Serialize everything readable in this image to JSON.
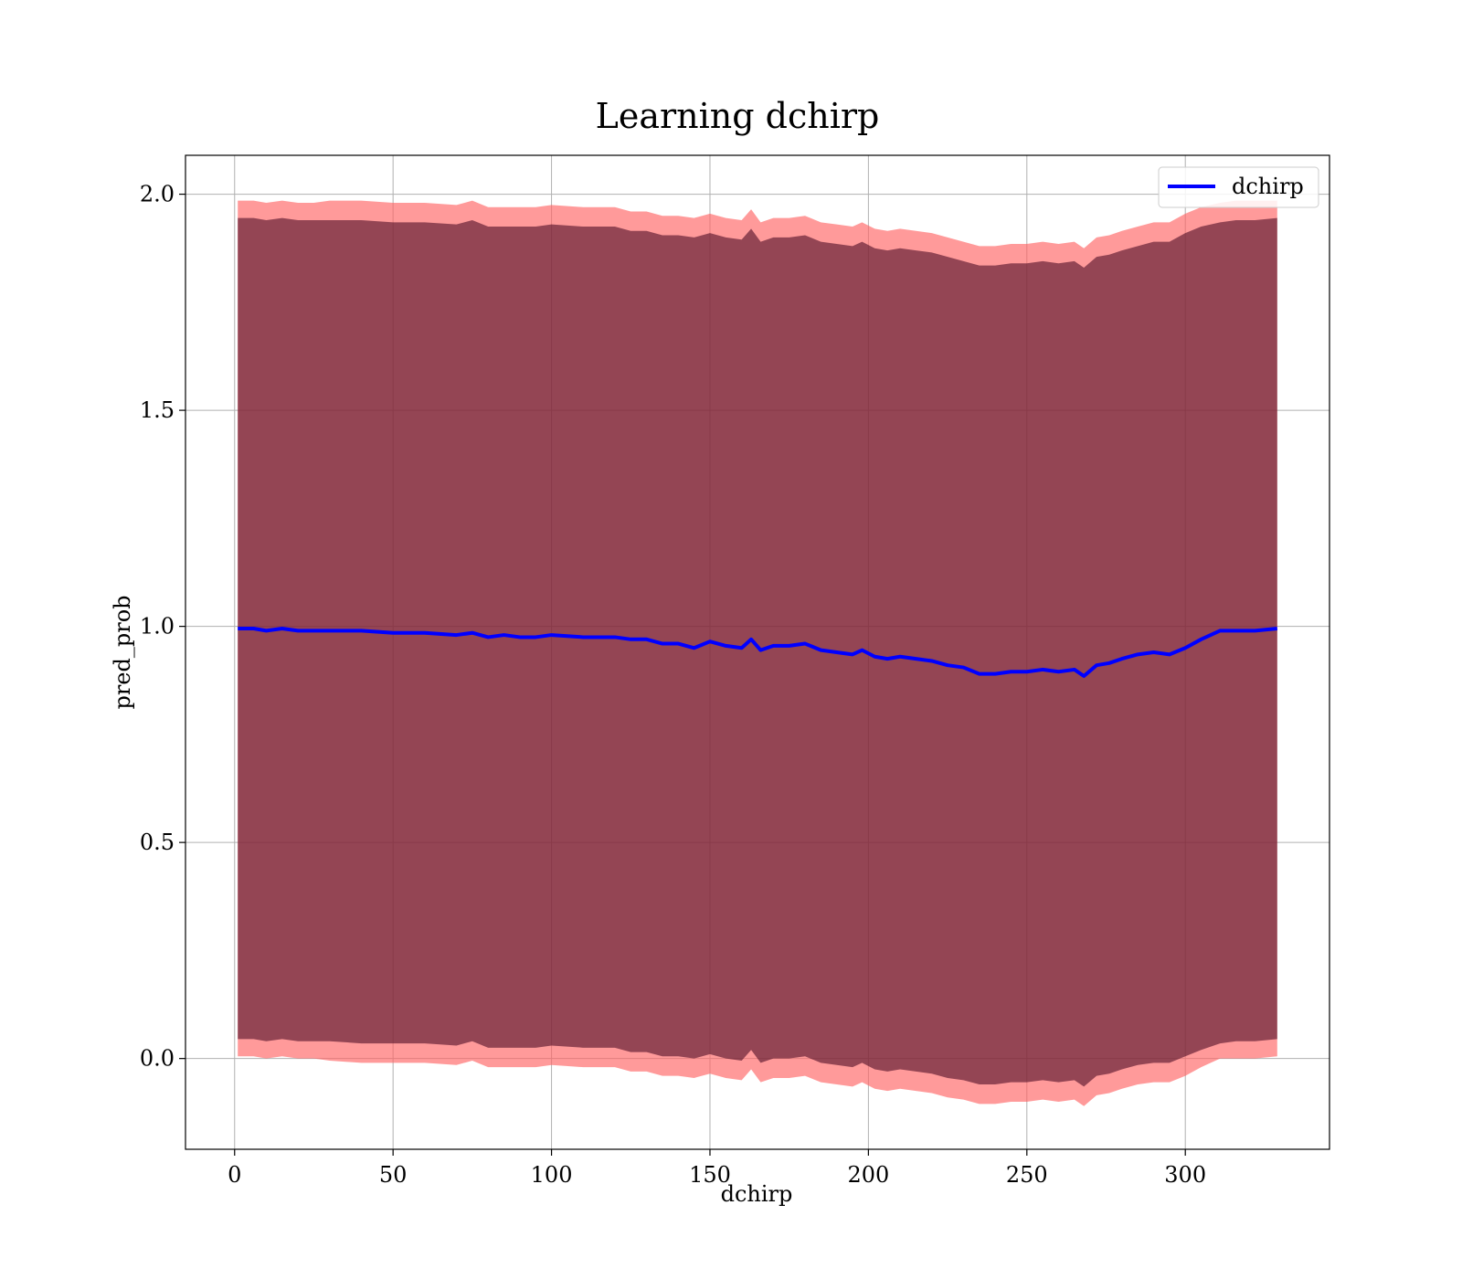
{
  "chart_data": {
    "type": "line",
    "title": "Learning dchirp",
    "xlabel": "dchirp",
    "ylabel": "pred_prob",
    "xlim": [
      -15.5,
      345.5
    ],
    "ylim": [
      -0.21,
      2.09
    ],
    "xticks": [
      0,
      50,
      100,
      150,
      200,
      250,
      300
    ],
    "xtick_labels": [
      "0",
      "50",
      "100",
      "150",
      "200",
      "250",
      "300"
    ],
    "yticks": [
      0.0,
      0.5,
      1.0,
      1.5,
      2.0
    ],
    "ytick_labels": [
      "0.0",
      "0.5",
      "1.0",
      "1.5",
      "2.0"
    ],
    "grid": true,
    "legend": {
      "position": "top-right",
      "entries": [
        "dchirp"
      ]
    },
    "colors": {
      "line": "#0000ff",
      "outer_band": "#ff6464",
      "inner_band": "#4d0d26",
      "grid": "#b0b0b0"
    },
    "series": [
      {
        "name": "dchirp",
        "x": [
          1,
          6,
          10,
          15,
          20,
          25,
          30,
          40,
          50,
          60,
          70,
          75,
          80,
          85,
          90,
          95,
          100,
          110,
          120,
          125,
          130,
          135,
          140,
          145,
          150,
          155,
          160,
          163,
          166,
          170,
          175,
          180,
          185,
          190,
          195,
          198,
          202,
          206,
          210,
          215,
          220,
          225,
          230,
          235,
          240,
          245,
          250,
          255,
          260,
          265,
          268,
          272,
          276,
          280,
          285,
          290,
          295,
          300,
          305,
          311,
          316,
          322,
          329
        ],
        "y": [
          0.995,
          0.995,
          0.99,
          0.995,
          0.99,
          0.99,
          0.99,
          0.99,
          0.985,
          0.985,
          0.98,
          0.985,
          0.975,
          0.98,
          0.975,
          0.975,
          0.98,
          0.975,
          0.975,
          0.97,
          0.97,
          0.96,
          0.96,
          0.95,
          0.965,
          0.955,
          0.95,
          0.97,
          0.945,
          0.955,
          0.955,
          0.96,
          0.945,
          0.94,
          0.935,
          0.945,
          0.93,
          0.925,
          0.93,
          0.925,
          0.92,
          0.91,
          0.905,
          0.89,
          0.89,
          0.895,
          0.895,
          0.9,
          0.895,
          0.9,
          0.885,
          0.91,
          0.915,
          0.925,
          0.935,
          0.94,
          0.935,
          0.95,
          0.97,
          0.99,
          0.99,
          0.99,
          0.995
        ],
        "lower_outer": [
          0.005,
          0.005,
          0.0,
          0.005,
          0.0,
          0.0,
          -0.005,
          -0.01,
          -0.01,
          -0.01,
          -0.015,
          -0.005,
          -0.02,
          -0.02,
          -0.02,
          -0.02,
          -0.015,
          -0.02,
          -0.02,
          -0.03,
          -0.03,
          -0.04,
          -0.04,
          -0.045,
          -0.035,
          -0.045,
          -0.05,
          -0.025,
          -0.055,
          -0.045,
          -0.045,
          -0.04,
          -0.055,
          -0.06,
          -0.065,
          -0.055,
          -0.07,
          -0.075,
          -0.07,
          -0.075,
          -0.08,
          -0.09,
          -0.095,
          -0.105,
          -0.105,
          -0.1,
          -0.1,
          -0.095,
          -0.1,
          -0.095,
          -0.11,
          -0.085,
          -0.08,
          -0.07,
          -0.06,
          -0.055,
          -0.055,
          -0.04,
          -0.02,
          0.0,
          0.0,
          0.0,
          0.005
        ],
        "upper_outer": [
          1.985,
          1.985,
          1.98,
          1.985,
          1.98,
          1.98,
          1.985,
          1.985,
          1.98,
          1.98,
          1.975,
          1.985,
          1.97,
          1.97,
          1.97,
          1.97,
          1.975,
          1.97,
          1.97,
          1.96,
          1.96,
          1.95,
          1.95,
          1.945,
          1.955,
          1.945,
          1.94,
          1.965,
          1.935,
          1.945,
          1.945,
          1.95,
          1.935,
          1.93,
          1.925,
          1.935,
          1.92,
          1.915,
          1.92,
          1.915,
          1.91,
          1.9,
          1.89,
          1.88,
          1.88,
          1.885,
          1.885,
          1.89,
          1.885,
          1.89,
          1.875,
          1.9,
          1.905,
          1.915,
          1.925,
          1.935,
          1.935,
          1.955,
          1.97,
          1.98,
          1.985,
          1.985,
          1.985
        ],
        "lower_inner": [
          0.045,
          0.045,
          0.04,
          0.045,
          0.04,
          0.04,
          0.04,
          0.035,
          0.035,
          0.035,
          0.03,
          0.04,
          0.025,
          0.025,
          0.025,
          0.025,
          0.03,
          0.025,
          0.025,
          0.015,
          0.015,
          0.005,
          0.005,
          0.0,
          0.01,
          0.0,
          -0.005,
          0.02,
          -0.01,
          0.0,
          0.0,
          0.005,
          -0.01,
          -0.015,
          -0.02,
          -0.01,
          -0.025,
          -0.03,
          -0.025,
          -0.03,
          -0.035,
          -0.045,
          -0.05,
          -0.06,
          -0.06,
          -0.055,
          -0.055,
          -0.05,
          -0.055,
          -0.05,
          -0.065,
          -0.04,
          -0.035,
          -0.025,
          -0.015,
          -0.01,
          -0.01,
          0.005,
          0.02,
          0.035,
          0.04,
          0.04,
          0.045
        ],
        "upper_inner": [
          1.945,
          1.945,
          1.94,
          1.945,
          1.94,
          1.94,
          1.94,
          1.94,
          1.935,
          1.935,
          1.93,
          1.94,
          1.925,
          1.925,
          1.925,
          1.925,
          1.93,
          1.925,
          1.925,
          1.915,
          1.915,
          1.905,
          1.905,
          1.9,
          1.91,
          1.9,
          1.895,
          1.92,
          1.89,
          1.9,
          1.9,
          1.905,
          1.89,
          1.885,
          1.88,
          1.89,
          1.875,
          1.87,
          1.875,
          1.87,
          1.865,
          1.855,
          1.845,
          1.835,
          1.835,
          1.84,
          1.84,
          1.845,
          1.84,
          1.845,
          1.83,
          1.855,
          1.86,
          1.87,
          1.88,
          1.89,
          1.89,
          1.91,
          1.925,
          1.935,
          1.94,
          1.94,
          1.945
        ]
      }
    ]
  }
}
